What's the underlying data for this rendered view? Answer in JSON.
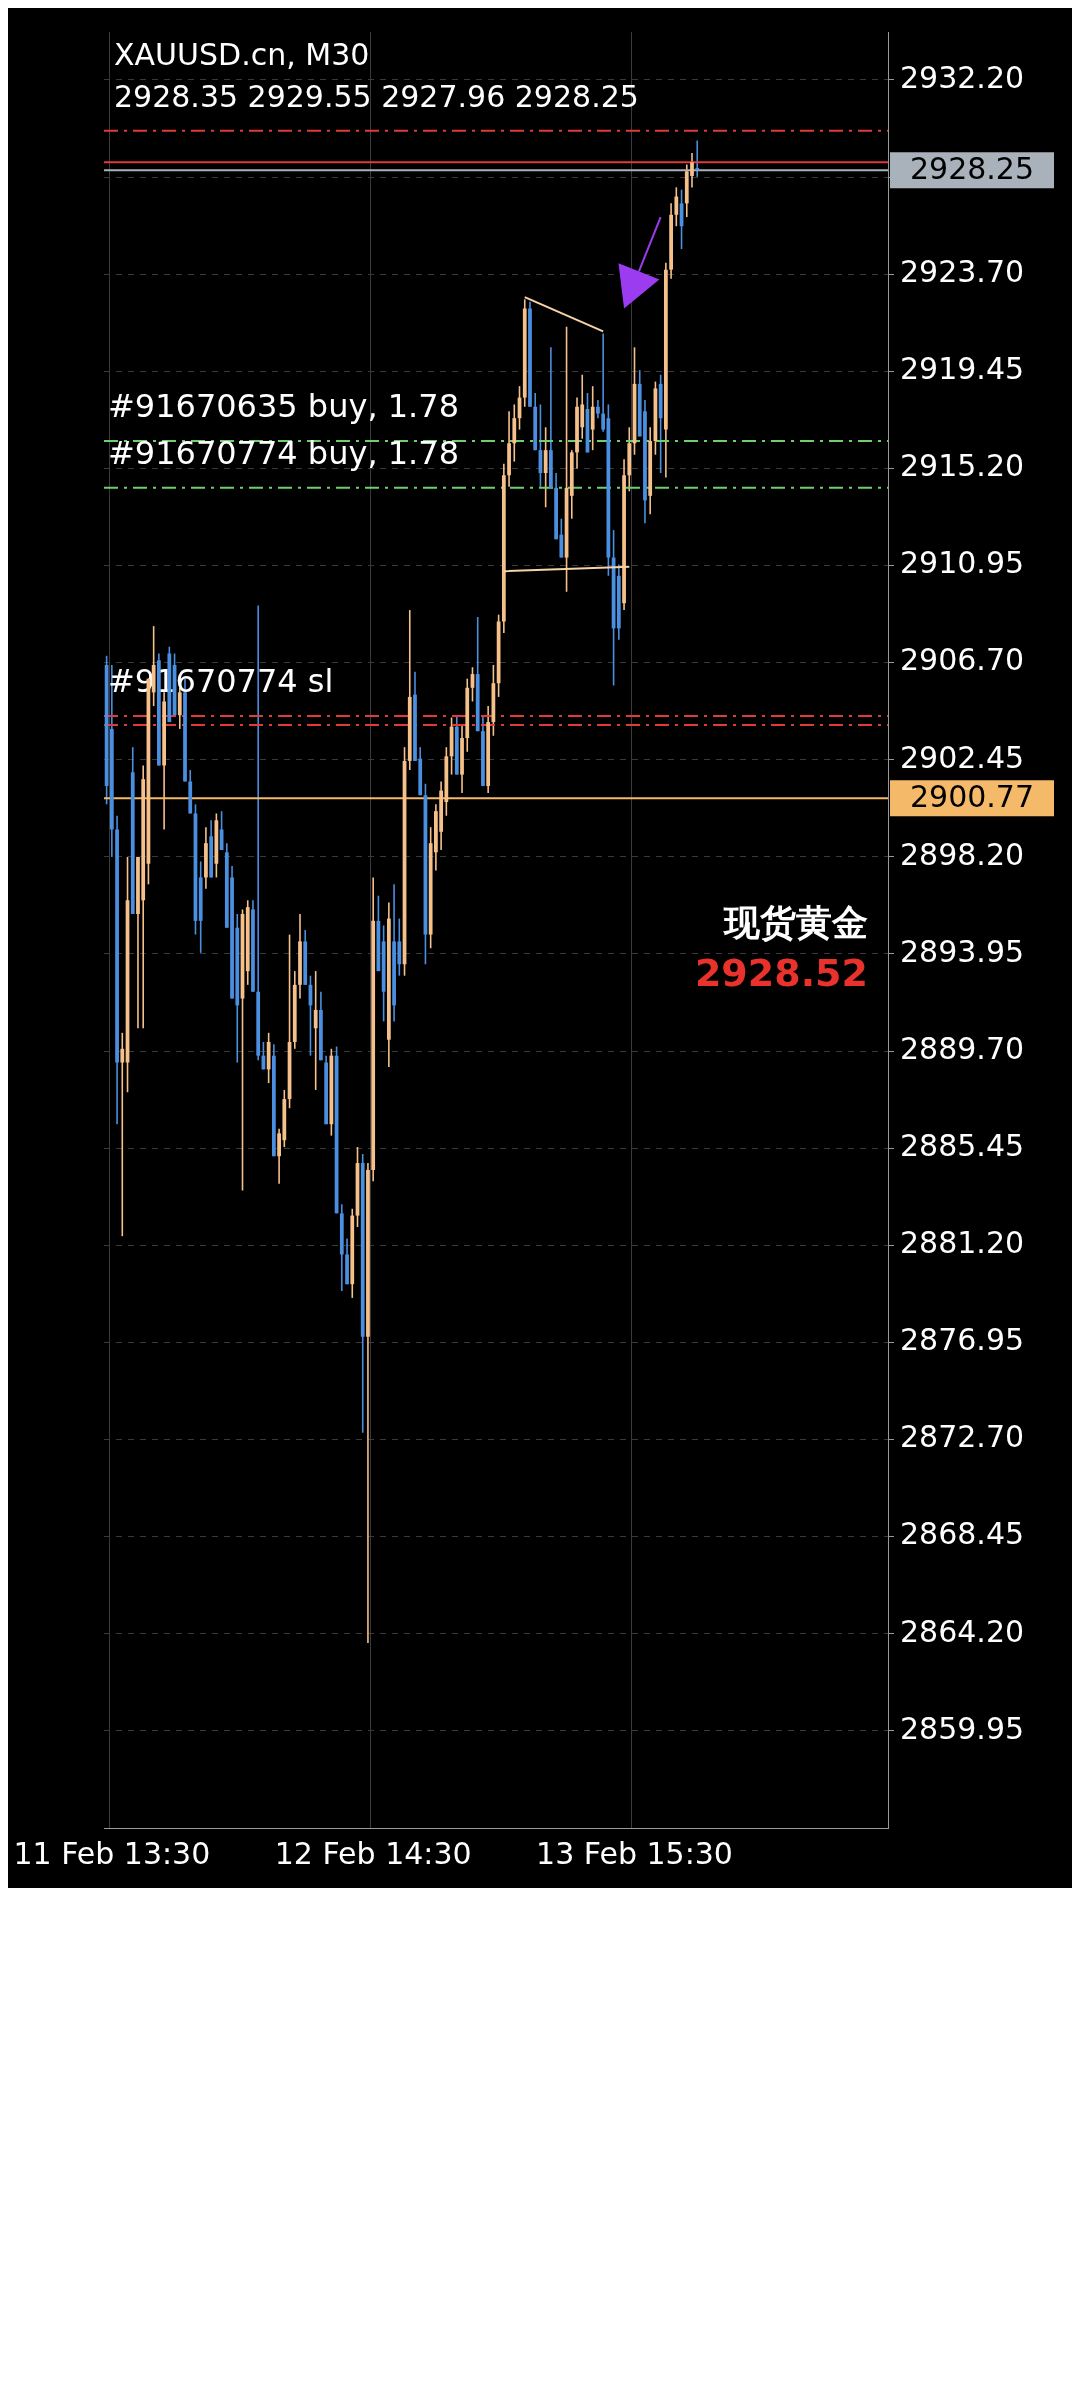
{
  "chart_data": {
    "type": "candlestick",
    "title": "XAUUSD.cn, M30",
    "subtitle": "2928.35 2929.55 2927.96 2928.25",
    "categories": [
      null,
      "11 Feb 13:30",
      null,
      null,
      null,
      null,
      null,
      null,
      null,
      null,
      null,
      null,
      null,
      null,
      null,
      null,
      null,
      null,
      null,
      null,
      null,
      null,
      null,
      null,
      null,
      null,
      null,
      null,
      null,
      null,
      null,
      null,
      null,
      null,
      null,
      null,
      null,
      null,
      null,
      null,
      null,
      null,
      null,
      null,
      null,
      null,
      null,
      null,
      null,
      null,
      null,
      "12 Feb 14:30",
      null,
      null,
      null,
      null,
      null,
      null,
      null,
      null,
      null,
      null,
      null,
      null,
      null,
      null,
      null,
      null,
      null,
      null,
      null,
      null,
      null,
      null,
      null,
      null,
      null,
      null,
      null,
      null,
      null,
      null,
      null,
      null,
      null,
      null,
      null,
      null,
      null,
      null,
      null,
      null,
      null,
      null,
      null,
      null,
      null,
      null,
      null,
      null,
      null,
      "13 Feb 15:30",
      null,
      null,
      null,
      null,
      null,
      null,
      null,
      null,
      null,
      null,
      null,
      null,
      null,
      null,
      null,
      null,
      null,
      null,
      null,
      null,
      null,
      null,
      null,
      null,
      null,
      null,
      null,
      null,
      null,
      null,
      null,
      null,
      null,
      null,
      null,
      null,
      null,
      null,
      null,
      null,
      null,
      null,
      null,
      null,
      null,
      null,
      null,
      null
    ],
    "ohlc": [
      [
        2906.6,
        2907.0,
        2900.5,
        2901.3
      ],
      [
        2903.8,
        2906.6,
        2898.2,
        2899.4
      ],
      [
        2899.4,
        2900.0,
        2886.5,
        2889.2
      ],
      [
        2889.2,
        2890.5,
        2881.6,
        2889.8
      ],
      [
        2889.2,
        2898.2,
        2887.9,
        2896.3
      ],
      [
        2901.9,
        2903.0,
        2895.7,
        2895.7
      ],
      [
        2895.7,
        2898.2,
        2890.7,
        2898.2
      ],
      [
        2896.3,
        2902.2,
        2890.7,
        2901.6
      ],
      [
        2897.9,
        2906.0,
        2897.0,
        2906.0
      ],
      [
        2905.4,
        2908.3,
        2904.8,
        2906.6
      ],
      [
        2906.8,
        2907.1,
        2902.2,
        2902.2
      ],
      [
        2902.2,
        2905.4,
        2899.4,
        2905.0
      ],
      [
        2907.1,
        2907.4,
        2904.1,
        2904.1
      ],
      [
        2906.6,
        2907.1,
        2904.4,
        2904.4
      ],
      [
        2904.4,
        2905.6,
        2903.8,
        2905.4
      ],
      [
        2905.4,
        2906.0,
        2901.5,
        2901.5
      ],
      [
        2901.5,
        2902.0,
        2900.1,
        2900.1
      ],
      [
        2900.1,
        2900.5,
        2894.8,
        2895.4
      ],
      [
        2897.3,
        2898.0,
        2894.0,
        2895.4
      ],
      [
        2897.3,
        2899.5,
        2896.8,
        2898.8
      ],
      [
        2899.1,
        2899.8,
        2897.3,
        2897.3
      ],
      [
        2897.9,
        2900.1,
        2897.3,
        2899.8
      ],
      [
        2899.4,
        2900.2,
        2898.5,
        2898.5
      ],
      [
        2898.4,
        2898.8,
        2895.1,
        2895.1
      ],
      [
        2897.3,
        2897.8,
        2892.0,
        2892.0
      ],
      [
        2895.1,
        2895.7,
        2889.2,
        2891.7
      ],
      [
        2892.0,
        2895.9,
        2883.6,
        2895.7
      ],
      [
        2893.2,
        2896.3,
        2892.6,
        2896.0
      ],
      [
        2895.9,
        2896.3,
        2892.3,
        2892.3
      ],
      [
        2892.3,
        2909.2,
        2889.3,
        2889.5
      ],
      [
        2889.5,
        2890.1,
        2888.9,
        2888.9
      ],
      [
        2888.9,
        2890.5,
        2888.3,
        2890.1
      ],
      [
        2889.5,
        2890.0,
        2885.1,
        2885.1
      ],
      [
        2885.1,
        2886.3,
        2883.9,
        2886.1
      ],
      [
        2885.8,
        2888.0,
        2885.5,
        2887.6
      ],
      [
        2887.6,
        2894.8,
        2887.2,
        2890.1
      ],
      [
        2890.1,
        2893.2,
        2889.8,
        2892.6
      ],
      [
        2892.6,
        2895.7,
        2892.0,
        2894.5
      ],
      [
        2894.5,
        2895.0,
        2892.6,
        2892.6
      ],
      [
        2892.6,
        2893.0,
        2889.5,
        2891.7
      ],
      [
        2890.7,
        2893.2,
        2888.0,
        2891.5
      ],
      [
        2891.5,
        2892.3,
        2889.3,
        2889.3
      ],
      [
        2889.2,
        2889.5,
        2886.5,
        2886.5
      ],
      [
        2886.5,
        2889.8,
        2886.0,
        2889.5
      ],
      [
        2889.5,
        2889.9,
        2882.6,
        2882.6
      ],
      [
        2882.6,
        2883.0,
        2879.2,
        2880.8
      ],
      [
        2880.8,
        2881.5,
        2879.5,
        2879.5
      ],
      [
        2879.5,
        2882.8,
        2878.9,
        2882.5
      ],
      [
        2882.5,
        2885.5,
        2882.0,
        2884.8
      ],
      [
        2884.8,
        2885.2,
        2873.0,
        2877.2
      ],
      [
        2877.2,
        2884.8,
        2863.8,
        2884.5
      ],
      [
        2884.5,
        2897.3,
        2884.0,
        2895.4
      ],
      [
        2895.4,
        2896.5,
        2893.2,
        2893.2
      ],
      [
        2894.5,
        2895.2,
        2891.0,
        2892.3
      ],
      [
        2890.2,
        2896.2,
        2889.0,
        2895.5
      ],
      [
        2894.5,
        2897.0,
        2891.0,
        2891.7
      ],
      [
        2894.5,
        2895.5,
        2893.0,
        2893.5
      ],
      [
        2893.5,
        2903.0,
        2893.0,
        2902.4
      ],
      [
        2902.4,
        2909.0,
        2902.0,
        2905.2
      ],
      [
        2905.3,
        2906.3,
        2902.4,
        2902.4
      ],
      [
        2902.5,
        2903.0,
        2900.9,
        2900.9
      ],
      [
        2900.9,
        2901.4,
        2893.5,
        2894.8
      ],
      [
        2894.8,
        2899.5,
        2894.2,
        2898.8
      ],
      [
        2898.4,
        2900.5,
        2897.6,
        2900.2
      ],
      [
        2899.3,
        2901.5,
        2898.5,
        2901.1
      ],
      [
        2900.6,
        2903.0,
        2900.0,
        2902.6
      ],
      [
        2902.6,
        2904.3,
        2901.8,
        2903.9
      ],
      [
        2903.9,
        2904.4,
        2901.8,
        2901.8
      ],
      [
        2901.8,
        2904.0,
        2901.0,
        2903.4
      ],
      [
        2903.4,
        2906.0,
        2902.8,
        2905.6
      ],
      [
        2905.6,
        2906.5,
        2905.0,
        2906.2
      ],
      [
        2906.2,
        2908.7,
        2903.7,
        2903.7
      ],
      [
        2903.7,
        2904.4,
        2901.3,
        2901.3
      ],
      [
        2901.3,
        2904.8,
        2901.0,
        2904.1
      ],
      [
        2904.1,
        2906.6,
        2903.5,
        2905.8
      ],
      [
        2905.8,
        2908.8,
        2905.2,
        2908.5
      ],
      [
        2908.5,
        2915.4,
        2908.0,
        2914.9
      ],
      [
        2914.9,
        2917.7,
        2914.4,
        2916.3
      ],
      [
        2916.3,
        2918.0,
        2915.5,
        2917.4
      ],
      [
        2917.4,
        2918.8,
        2916.9,
        2918.3
      ],
      [
        2918.3,
        2922.6,
        2917.9,
        2922.2
      ],
      [
        2922.2,
        2922.5,
        2917.9,
        2917.9
      ],
      [
        2917.9,
        2918.5,
        2916.0,
        2916.0
      ],
      [
        2916.0,
        2918.0,
        2914.4,
        2915.0
      ],
      [
        2915.0,
        2917.0,
        2913.5,
        2916.0
      ],
      [
        2916.0,
        2920.5,
        2914.35,
        2914.35
      ],
      [
        2914.35,
        2915.0,
        2912.1,
        2912.1
      ],
      [
        2912.3,
        2913.0,
        2911.3,
        2911.3
      ],
      [
        2911.3,
        2921.4,
        2909.8,
        2914.35
      ],
      [
        2914.0,
        2916.0,
        2913.0,
        2915.9
      ],
      [
        2915.9,
        2918.3,
        2915.2,
        2917.9
      ],
      [
        2917.0,
        2919.3,
        2916.5,
        2918.0
      ],
      [
        2917.8,
        2918.5,
        2915.9,
        2915.9
      ],
      [
        2916.9,
        2918.8,
        2916.0,
        2917.9
      ],
      [
        2917.9,
        2918.2,
        2917.4,
        2917.6
      ],
      [
        2917.6,
        2921.1,
        2916.8,
        2916.9
      ],
      [
        2917.4,
        2918.0,
        2910.5,
        2911.3
      ],
      [
        2911.3,
        2912.5,
        2905.7,
        2908.2
      ],
      [
        2910.5,
        2911.0,
        2907.7,
        2908.2
      ],
      [
        2909.3,
        2915.6,
        2909.0,
        2914.9
      ],
      [
        2914.9,
        2917.0,
        2914.2,
        2916.3
      ],
      [
        2916.3,
        2920.5,
        2915.8,
        2918.9
      ],
      [
        2918.9,
        2919.5,
        2916.6,
        2916.6
      ],
      [
        2917.7,
        2918.2,
        2912.8,
        2913.8
      ],
      [
        2914.0,
        2917.0,
        2913.2,
        2916.4
      ],
      [
        2916.4,
        2919.0,
        2915.8,
        2918.7
      ],
      [
        2918.9,
        2919.3,
        2915.0,
        2917.4
      ],
      [
        2916.9,
        2924.2,
        2914.8,
        2923.9
      ],
      [
        2923.9,
        2926.8,
        2923.5,
        2926.3
      ],
      [
        2926.3,
        2927.5,
        2925.8,
        2927.1
      ],
      [
        2926.8,
        2927.4,
        2924.8,
        2925.8
      ],
      [
        2926.8,
        2928.5,
        2926.2,
        2928.2
      ],
      [
        2928.0,
        2929.0,
        2927.5,
        2928.6
      ],
      [
        2928.35,
        2929.55,
        2927.96,
        2928.25
      ],
      null,
      null,
      null,
      null,
      null,
      null,
      null,
      null,
      null,
      null,
      null,
      null,
      null,
      null,
      null,
      null,
      null,
      null,
      null,
      null,
      null,
      null,
      null,
      null,
      null,
      null,
      null,
      null,
      null,
      null,
      null,
      null,
      null,
      null,
      null,
      null
    ],
    "colors": [
      "#4a8fe0",
      "#4a8fe0",
      "#4a8fe0",
      "#f5c08a",
      "#f5c08a",
      "#4a8fe0",
      "#f5c08a",
      "#f5c08a",
      "#f5c08a",
      "#f5c08a",
      "#4a8fe0",
      "#f5c08a",
      "#4a8fe0",
      "#4a8fe0",
      "#f5c08a",
      "#4a8fe0",
      "#4a8fe0",
      "#4a8fe0",
      "#4a8fe0",
      "#f5c08a",
      "#4a8fe0",
      "#f5c08a",
      "#4a8fe0",
      "#4a8fe0",
      "#4a8fe0",
      "#4a8fe0",
      "#f5c08a",
      "#f5c08a",
      "#4a8fe0",
      "#4a8fe0",
      "#4a8fe0",
      "#f5c08a",
      "#4a8fe0",
      "#f5c08a",
      "#f5c08a",
      "#f5c08a",
      "#f5c08a",
      "#f5c08a",
      "#4a8fe0",
      "#4a8fe0",
      "#f5c08a",
      "#4a8fe0",
      "#4a8fe0",
      "#f5c08a",
      "#4a8fe0",
      "#4a8fe0",
      "#4a8fe0",
      "#f5c08a",
      "#f5c08a",
      "#4a8fe0",
      "#f5c08a",
      "#f5c08a",
      "#4a8fe0",
      "#4a8fe0",
      "#f5c08a",
      "#4a8fe0",
      "#4a8fe0",
      "#f5c08a",
      "#f5c08a",
      "#4a8fe0",
      "#4a8fe0",
      "#4a8fe0",
      "#f5c08a",
      "#f5c08a",
      "#f5c08a",
      "#f5c08a",
      "#f5c08a",
      "#4a8fe0",
      "#f5c08a",
      "#f5c08a",
      "#f5c08a",
      "#4a8fe0",
      "#4a8fe0",
      "#f5c08a",
      "#f5c08a",
      "#f5c08a",
      "#f5c08a",
      "#f5c08a",
      "#f5c08a",
      "#f5c08a",
      "#f5c08a",
      "#4a8fe0",
      "#4a8fe0",
      "#4a8fe0",
      "#f5c08a",
      "#4a8fe0",
      "#4a8fe0",
      "#4a8fe0",
      "#f5c08a",
      "#f5c08a",
      "#f5c08a",
      "#f5c08a",
      "#4a8fe0",
      "#f5c08a",
      "#4a8fe0",
      "#4a8fe0",
      "#4a8fe0",
      "#4a8fe0",
      "#4a8fe0",
      "#f5c08a",
      "#f5c08a",
      "#f5c08a",
      "#4a8fe0",
      "#4a8fe0",
      "#f5c08a",
      "#f5c08a",
      "#4a8fe0",
      "#f5c08a",
      "#f5c08a",
      "#f5c08a",
      "#4a8fe0",
      "#f5c08a",
      "#f5c08a",
      "#4a8fe0",
      null,
      null,
      null,
      null,
      null,
      null,
      null,
      null,
      null,
      null,
      null,
      null,
      null,
      null,
      null,
      null,
      null,
      null,
      null,
      null,
      null,
      null,
      null,
      null,
      null,
      null,
      null,
      null,
      null,
      null,
      null,
      null,
      null,
      null,
      null,
      null
    ],
    "ylim": [
      2855.7,
      2934.3
    ],
    "yticks": [
      {
        "value": 2859.95,
        "label": "2859.95"
      },
      {
        "value": 2864.2,
        "label": "2864.20"
      },
      {
        "value": 2868.45,
        "label": "2868.45"
      },
      {
        "value": 2872.7,
        "label": "2872.70"
      },
      {
        "value": 2876.95,
        "label": "2876.95"
      },
      {
        "value": 2881.2,
        "label": "2881.20"
      },
      {
        "value": 2885.45,
        "label": "2885.45"
      },
      {
        "value": 2889.7,
        "label": "2889.70"
      },
      {
        "value": 2893.95,
        "label": "2893.95"
      },
      {
        "value": 2898.2,
        "label": "2898.20"
      },
      {
        "value": 2902.45,
        "label": "2902.45"
      },
      {
        "value": 2906.7,
        "label": "2906.70"
      },
      {
        "value": 2910.95,
        "label": "2910.95"
      },
      {
        "value": 2915.2,
        "label": "2915.20"
      },
      {
        "value": 2919.45,
        "label": "2919.45"
      },
      {
        "value": 2923.7,
        "label": "2923.70"
      },
      {
        "value": 2927.95,
        "label": null
      },
      {
        "value": 2932.2,
        "label": "2932.20"
      }
    ],
    "grid": true,
    "ref_lines": [
      {
        "axis": "y",
        "value": 2929.98,
        "label": null,
        "color": "#e03a3a",
        "line_style": "dashed"
      },
      {
        "axis": "y",
        "value": 2928.6,
        "label": null,
        "color": "#e03a3a",
        "line_style": "solid"
      },
      {
        "axis": "y",
        "value": 2928.25,
        "label": "2928.25",
        "color": "#a9b1ba",
        "line_style": "solid"
      },
      {
        "axis": "y",
        "value": 2916.4,
        "label": "#91670635 buy, 1.78",
        "color": "#6fcf6f",
        "line_style": "dashed"
      },
      {
        "axis": "y",
        "value": 2914.35,
        "label": "#91670774 buy, 1.78",
        "color": "#6fcf6f",
        "line_style": "dashed"
      },
      {
        "axis": "y",
        "value": 2904.37,
        "label": "#91670774 sl",
        "color": "#e03a3a",
        "line_style": "dashed"
      },
      {
        "axis": "y",
        "value": 2903.97,
        "label": null,
        "color": "#e03a3a",
        "line_style": "dashed"
      },
      {
        "axis": "y",
        "value": 2900.77,
        "label": "2900.77",
        "color": "#f5b96a",
        "line_style": "solid"
      }
    ],
    "annotations": [
      "现货黄金",
      "2928.52"
    ]
  }
}
